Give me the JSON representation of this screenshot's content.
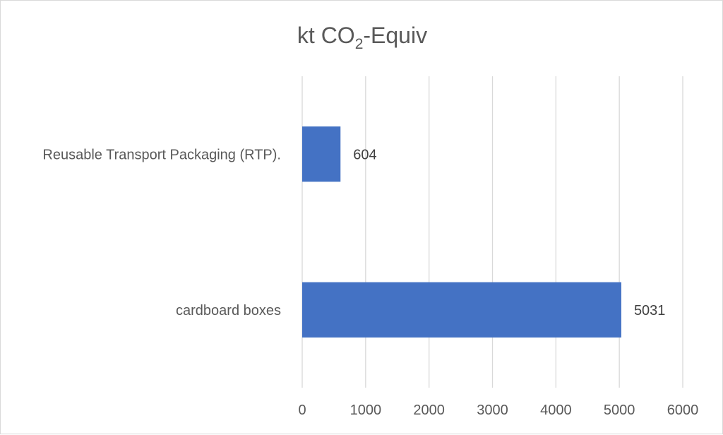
{
  "chart_data": {
    "type": "bar",
    "orientation": "horizontal",
    "title": {
      "main": "kt CO",
      "subscript": "2",
      "suffix": "-Equiv"
    },
    "categories": [
      "Reusable Transport Packaging (RTP).",
      "cardboard boxes"
    ],
    "values": [
      604,
      5031
    ],
    "data_labels": [
      "604",
      "5031"
    ],
    "xlim": [
      0,
      6000
    ],
    "x_ticks": [
      0,
      1000,
      2000,
      3000,
      4000,
      5000,
      6000
    ],
    "x_tick_labels": [
      "0",
      "1000",
      "2000",
      "3000",
      "4000",
      "5000",
      "6000"
    ],
    "xlabel": "",
    "ylabel": "",
    "grid": "vertical",
    "legend": "none",
    "colors": {
      "bar": "#4472c4",
      "grid": "#d9d9d9",
      "text": "#595959"
    }
  }
}
